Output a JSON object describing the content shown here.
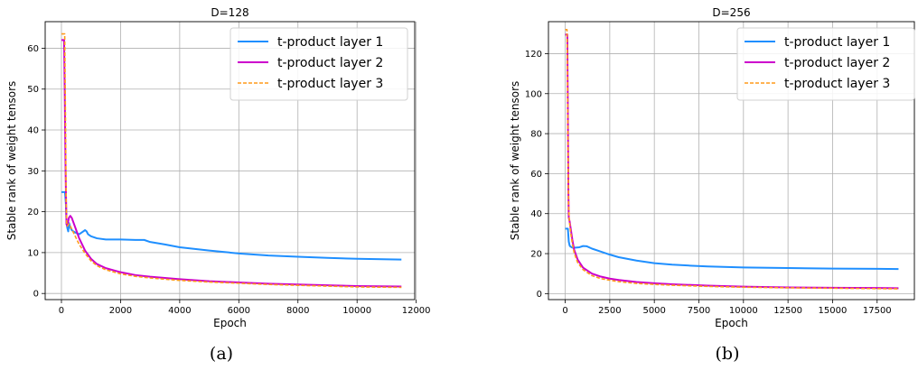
{
  "chart_data": [
    {
      "type": "line",
      "title": "D=128",
      "xlabel": "Epoch",
      "ylabel": "Stable rank of weight tensors",
      "caption": "(a)",
      "xlim": [
        -550,
        11950
      ],
      "ylim": [
        -1.5,
        66.5
      ],
      "xticks": [
        0,
        2000,
        4000,
        6000,
        8000,
        10000,
        12000
      ],
      "yticks": [
        0,
        10,
        20,
        30,
        40,
        50,
        60
      ],
      "grid": true,
      "legend_position": "top-right",
      "series": [
        {
          "name": "t-product layer 1",
          "color": "#1f8fff",
          "style": "solid",
          "x": [
            0,
            80,
            120,
            150,
            175,
            200,
            230,
            260,
            300,
            350,
            400,
            500,
            600,
            700,
            800,
            850,
            900,
            1000,
            1200,
            1500,
            2000,
            2500,
            2800,
            3000,
            3500,
            4000,
            5000,
            6000,
            7000,
            8000,
            9000,
            10000,
            11500
          ],
          "y": [
            24.8,
            24.8,
            24.8,
            22,
            17,
            16,
            15.2,
            17.2,
            16.2,
            15.5,
            15.2,
            14.8,
            14.5,
            15,
            15.5,
            15.2,
            14.5,
            14,
            13.5,
            13.2,
            13.2,
            13.1,
            13.1,
            12.6,
            12,
            11.3,
            10.5,
            9.8,
            9.3,
            9,
            8.7,
            8.5,
            8.3
          ]
        },
        {
          "name": "t-product layer 2",
          "color": "#cc00cc",
          "style": "solid",
          "x": [
            0,
            60,
            90,
            110,
            140,
            170,
            200,
            250,
            300,
            350,
            400,
            500,
            600,
            800,
            1000,
            1200,
            1500,
            2000,
            2500,
            3000,
            4000,
            5000,
            6000,
            7000,
            8000,
            9000,
            10000,
            11500
          ],
          "y": [
            62,
            62,
            62,
            50,
            30,
            17,
            16.5,
            18.5,
            19,
            18.5,
            17.5,
            15.5,
            13.5,
            10.5,
            8.5,
            7.2,
            6.2,
            5.2,
            4.5,
            4.1,
            3.5,
            3,
            2.7,
            2.4,
            2.2,
            2,
            1.8,
            1.7
          ]
        },
        {
          "name": "t-product layer 3",
          "color": "#ff9a1a",
          "style": "dashed",
          "x": [
            0,
            60,
            110,
            140,
            160,
            180,
            200,
            250,
            300,
            400,
            500,
            600,
            800,
            1000,
            1200,
            1500,
            2000,
            2500,
            3000,
            4000,
            5000,
            6000,
            7000,
            8000,
            9000,
            10000,
            11500
          ],
          "y": [
            63.5,
            63.5,
            63.5,
            40,
            22,
            17,
            16.5,
            17,
            16.5,
            15,
            13.5,
            12,
            9.8,
            8,
            6.8,
            5.8,
            4.8,
            4.2,
            3.8,
            3.2,
            2.8,
            2.5,
            2.2,
            2,
            1.8,
            1.6,
            1.5
          ]
        }
      ]
    },
    {
      "type": "line",
      "title": "D=256",
      "xlabel": "Epoch",
      "ylabel": "Stable rank of weight tensors",
      "caption": "(b)",
      "xlim": [
        -940,
        19590
      ],
      "ylim": [
        -3,
        136
      ],
      "xticks": [
        0,
        2500,
        5000,
        7500,
        10000,
        12500,
        15000,
        17500
      ],
      "yticks": [
        0,
        20,
        40,
        60,
        80,
        100,
        120
      ],
      "grid": true,
      "legend_position": "top-right",
      "series": [
        {
          "name": "t-product layer 1",
          "color": "#1f8fff",
          "style": "solid",
          "x": [
            0,
            100,
            150,
            200,
            250,
            300,
            400,
            600,
            800,
            1000,
            1200,
            1500,
            2000,
            2500,
            3000,
            4000,
            5000,
            6000,
            7000,
            8000,
            10000,
            12500,
            15000,
            17500,
            18700
          ],
          "y": [
            32.5,
            32.5,
            32.5,
            26,
            24,
            23.5,
            23,
            23,
            23.2,
            23.8,
            23.7,
            22.5,
            21,
            19.5,
            18.2,
            16.5,
            15.2,
            14.5,
            14,
            13.6,
            13.1,
            12.8,
            12.5,
            12.4,
            12.3
          ]
        },
        {
          "name": "t-product layer 2",
          "color": "#cc00cc",
          "style": "solid",
          "x": [
            0,
            80,
            120,
            150,
            180,
            200,
            250,
            300,
            400,
            500,
            700,
            1000,
            1500,
            2000,
            2500,
            3000,
            4000,
            5000,
            6000,
            8000,
            10000,
            12500,
            15000,
            17500,
            18700
          ],
          "y": [
            129.5,
            129.5,
            129.5,
            90,
            50,
            38,
            36,
            33,
            27,
            22,
            17,
            13,
            10,
            8.5,
            7.5,
            6.8,
            5.8,
            5.2,
            4.7,
            4,
            3.5,
            3.1,
            2.9,
            2.8,
            2.7
          ]
        },
        {
          "name": "t-product layer 3",
          "color": "#ff9a1a",
          "style": "dashed",
          "x": [
            0,
            60,
            100,
            130,
            160,
            190,
            220,
            250,
            300,
            400,
            500,
            700,
            1000,
            1500,
            2000,
            2500,
            3000,
            4000,
            5000,
            6000,
            8000,
            10000,
            12500,
            15000,
            17500,
            18700
          ],
          "y": [
            132,
            132,
            132,
            110,
            70,
            45,
            38,
            35,
            31,
            25,
            20.5,
            15.5,
            12,
            9,
            7.5,
            6.7,
            6,
            5.1,
            4.6,
            4.2,
            3.6,
            3.2,
            2.9,
            2.7,
            2.5,
            2.4
          ]
        }
      ]
    }
  ]
}
